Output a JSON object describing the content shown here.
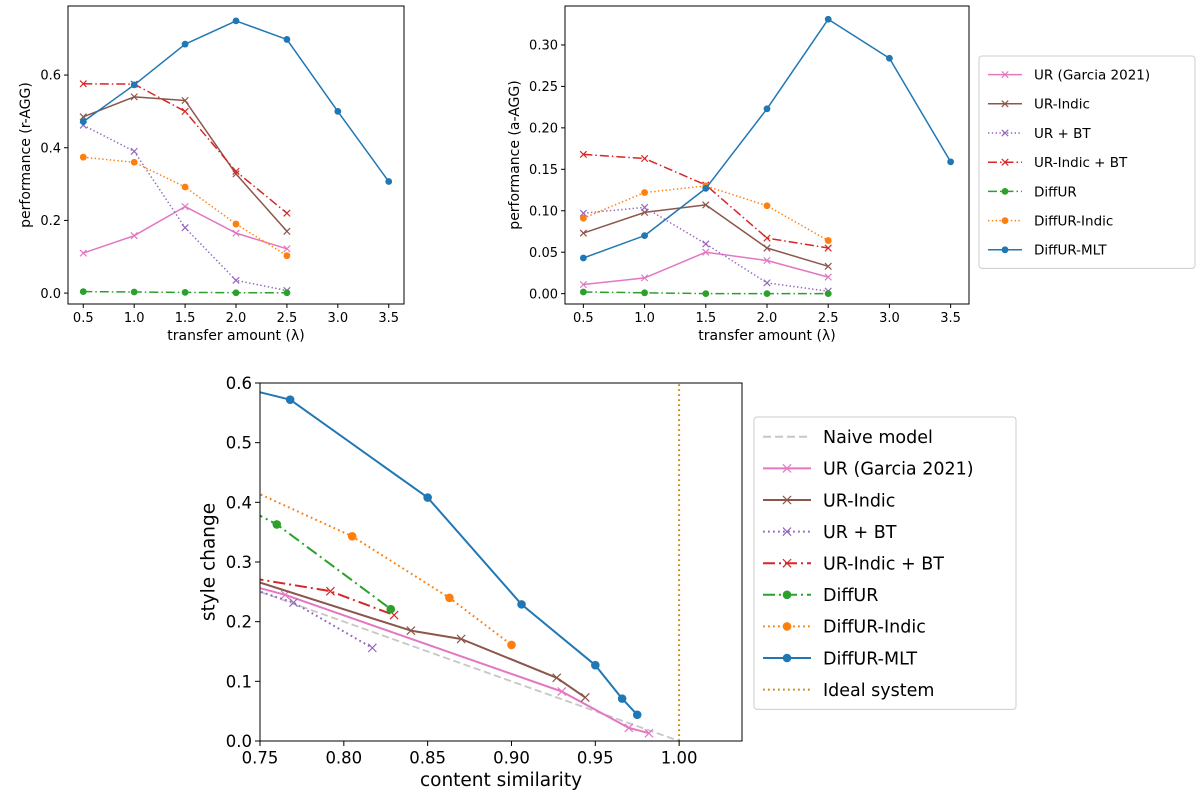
{
  "colors": {
    "UR": "#e377c2",
    "URIndic": "#8c564b",
    "URBT": "#9467bd",
    "URIndicBT": "#d62728",
    "DiffUR": "#2ca02c",
    "DiffURIndic": "#ff7f0e",
    "DiffURMLT": "#1f77b4",
    "Naive": "#c7c7c7",
    "Ideal": "#cc8a1a"
  },
  "chart_data": [
    {
      "type": "line",
      "xlabel": "transfer amount (λ)",
      "ylabel": "performance (r-AGG)",
      "xlim": [
        0.35,
        3.65
      ],
      "ylim": [
        -0.03,
        0.79
      ],
      "xticks": [
        0.5,
        1.0,
        1.5,
        2.0,
        2.5,
        3.0,
        3.5
      ],
      "xtick_labels": [
        "0.5",
        "1.0",
        "1.5",
        "2.0",
        "2.5",
        "3.0",
        "3.5"
      ],
      "yticks": [
        0.0,
        0.2,
        0.4,
        0.6
      ],
      "ytick_labels": [
        "0.0",
        "0.2",
        "0.4",
        "0.6"
      ],
      "grid": false,
      "series": [
        {
          "name": "UR (Garcia 2021)",
          "key": "UR",
          "style": "solid",
          "marker": "x",
          "x": [
            0.5,
            1.0,
            1.5,
            2.0,
            2.5
          ],
          "y": [
            0.11,
            0.158,
            0.238,
            0.165,
            0.122
          ]
        },
        {
          "name": "UR-Indic",
          "key": "URIndic",
          "style": "solid",
          "marker": "x",
          "x": [
            0.5,
            1.0,
            1.5,
            2.0,
            2.5
          ],
          "y": [
            0.485,
            0.54,
            0.53,
            0.328,
            0.17
          ]
        },
        {
          "name": "UR + BT",
          "key": "URBT",
          "style": "dotted",
          "marker": "x",
          "x": [
            0.5,
            1.0,
            1.5,
            2.0,
            2.5
          ],
          "y": [
            0.462,
            0.39,
            0.18,
            0.035,
            0.007
          ]
        },
        {
          "name": "UR-Indic + BT",
          "key": "URIndicBT",
          "style": "dashdot",
          "marker": "x",
          "x": [
            0.5,
            1.0,
            1.5,
            2.0,
            2.5
          ],
          "y": [
            0.576,
            0.575,
            0.5,
            0.335,
            0.22
          ]
        },
        {
          "name": "DiffUR",
          "key": "DiffUR",
          "style": "dashdot",
          "marker": "o",
          "x": [
            0.5,
            1.0,
            1.5,
            2.0,
            2.5
          ],
          "y": [
            0.004,
            0.003,
            0.002,
            0.001,
            0.001
          ]
        },
        {
          "name": "DiffUR-Indic",
          "key": "DiffURIndic",
          "style": "dotted",
          "marker": "o",
          "x": [
            0.5,
            1.0,
            1.5,
            2.0,
            2.5
          ],
          "y": [
            0.374,
            0.36,
            0.292,
            0.19,
            0.103
          ]
        },
        {
          "name": "DiffUR-MLT",
          "key": "DiffURMLT",
          "style": "solid",
          "marker": "o",
          "x": [
            0.5,
            1.0,
            1.5,
            2.0,
            2.5,
            3.0,
            3.5
          ],
          "y": [
            0.472,
            0.573,
            0.685,
            0.749,
            0.698,
            0.5,
            0.307
          ]
        }
      ]
    },
    {
      "type": "line",
      "xlabel": "transfer amount (λ)",
      "ylabel": "performance (a-AGG)",
      "xlim": [
        0.35,
        3.65
      ],
      "ylim": [
        -0.0125,
        0.347
      ],
      "xticks": [
        0.5,
        1.0,
        1.5,
        2.0,
        2.5,
        3.0,
        3.5
      ],
      "xtick_labels": [
        "0.5",
        "1.0",
        "1.5",
        "2.0",
        "2.5",
        "3.0",
        "3.5"
      ],
      "yticks": [
        0.0,
        0.05,
        0.1,
        0.15,
        0.2,
        0.25,
        0.3
      ],
      "ytick_labels": [
        "0.00",
        "0.05",
        "0.10",
        "0.15",
        "0.20",
        "0.25",
        "0.30"
      ],
      "grid": false,
      "legend_position": "right",
      "series": [
        {
          "name": "UR (Garcia 2021)",
          "key": "UR",
          "style": "solid",
          "marker": "x",
          "x": [
            0.5,
            1.0,
            1.5,
            2.0,
            2.5
          ],
          "y": [
            0.011,
            0.019,
            0.05,
            0.04,
            0.02
          ]
        },
        {
          "name": "UR-Indic",
          "key": "URIndic",
          "style": "solid",
          "marker": "x",
          "x": [
            0.5,
            1.0,
            1.5,
            2.0,
            2.5
          ],
          "y": [
            0.073,
            0.098,
            0.107,
            0.055,
            0.033
          ]
        },
        {
          "name": "UR + BT",
          "key": "URBT",
          "style": "dotted",
          "marker": "x",
          "x": [
            0.5,
            1.0,
            1.5,
            2.0,
            2.5
          ],
          "y": [
            0.097,
            0.104,
            0.06,
            0.013,
            0.003
          ]
        },
        {
          "name": "UR-Indic + BT",
          "key": "URIndicBT",
          "style": "dashdot",
          "marker": "x",
          "x": [
            0.5,
            1.0,
            1.5,
            2.0,
            2.5
          ],
          "y": [
            0.168,
            0.163,
            0.131,
            0.067,
            0.055
          ]
        },
        {
          "name": "DiffUR",
          "key": "DiffUR",
          "style": "dashdot",
          "marker": "o",
          "x": [
            0.5,
            1.0,
            1.5,
            2.0,
            2.5
          ],
          "y": [
            0.002,
            0.001,
            0.0,
            0.0,
            0.0
          ]
        },
        {
          "name": "DiffUR-Indic",
          "key": "DiffURIndic",
          "style": "dotted",
          "marker": "o",
          "x": [
            0.5,
            1.0,
            1.5,
            2.0,
            2.5
          ],
          "y": [
            0.091,
            0.122,
            0.13,
            0.106,
            0.064
          ]
        },
        {
          "name": "DiffUR-MLT",
          "key": "DiffURMLT",
          "style": "solid",
          "marker": "o",
          "x": [
            0.5,
            1.0,
            1.5,
            2.0,
            2.5,
            3.0,
            3.5
          ],
          "y": [
            0.043,
            0.07,
            0.127,
            0.223,
            0.331,
            0.284,
            0.159
          ]
        }
      ]
    },
    {
      "type": "line",
      "xlabel": "content similarity",
      "ylabel": "style change",
      "xlim": [
        0.75,
        1.0375
      ],
      "ylim": [
        0.0,
        0.6
      ],
      "xticks": [
        0.75,
        0.8,
        0.85,
        0.9,
        0.95,
        1.0
      ],
      "xtick_labels": [
        "0.75",
        "0.80",
        "0.85",
        "0.90",
        "0.95",
        "1.00"
      ],
      "yticks": [
        0.0,
        0.1,
        0.2,
        0.3,
        0.4,
        0.5,
        0.6
      ],
      "ytick_labels": [
        "0.0",
        "0.1",
        "0.2",
        "0.3",
        "0.4",
        "0.5",
        "0.6"
      ],
      "grid": false,
      "legend_position": "right",
      "series": [
        {
          "name": "Naive model",
          "key": "Naive",
          "style": "dashed",
          "marker": "none",
          "x": [
            0.75,
            1.0
          ],
          "y": [
            0.25,
            0.0
          ]
        },
        {
          "name": "UR (Garcia 2021)",
          "key": "UR",
          "style": "solid",
          "marker": "x",
          "x": [
            0.745,
            0.765,
            0.93,
            0.97,
            0.982
          ],
          "y": [
            0.26,
            0.245,
            0.083,
            0.022,
            0.013
          ]
        },
        {
          "name": "UR-Indic",
          "key": "URIndic",
          "style": "solid",
          "marker": "x",
          "x": [
            0.745,
            0.84,
            0.87,
            0.927,
            0.944
          ],
          "y": [
            0.27,
            0.185,
            0.171,
            0.106,
            0.073
          ]
        },
        {
          "name": "UR + BT",
          "key": "URBT",
          "style": "dotted",
          "marker": "x",
          "x": [
            0.745,
            0.77,
            0.817
          ],
          "y": [
            0.255,
            0.232,
            0.156
          ]
        },
        {
          "name": "UR-Indic + BT",
          "key": "URIndicBT",
          "style": "dashdot",
          "marker": "x",
          "x": [
            0.745,
            0.792,
            0.83
          ],
          "y": [
            0.273,
            0.251,
            0.211
          ]
        },
        {
          "name": "DiffUR",
          "key": "DiffUR",
          "style": "dashdot",
          "marker": "o",
          "x": [
            0.745,
            0.76,
            0.828
          ],
          "y": [
            0.385,
            0.363,
            0.221
          ]
        },
        {
          "name": "DiffUR-Indic",
          "key": "DiffURIndic",
          "style": "dotted",
          "marker": "o",
          "x": [
            0.745,
            0.805,
            0.863,
            0.9
          ],
          "y": [
            0.42,
            0.343,
            0.24,
            0.161
          ]
        },
        {
          "name": "DiffUR-MLT",
          "key": "DiffURMLT",
          "style": "solid",
          "marker": "o",
          "x": [
            0.745,
            0.768,
            0.85,
            0.906,
            0.95,
            0.966,
            0.975
          ],
          "y": [
            0.588,
            0.572,
            0.408,
            0.229,
            0.127,
            0.071,
            0.044
          ]
        },
        {
          "name": "Ideal system",
          "key": "Ideal",
          "style": "dotted",
          "marker": "none",
          "x": [
            1.0,
            1.0
          ],
          "y": [
            0.0,
            0.6
          ]
        }
      ]
    }
  ]
}
